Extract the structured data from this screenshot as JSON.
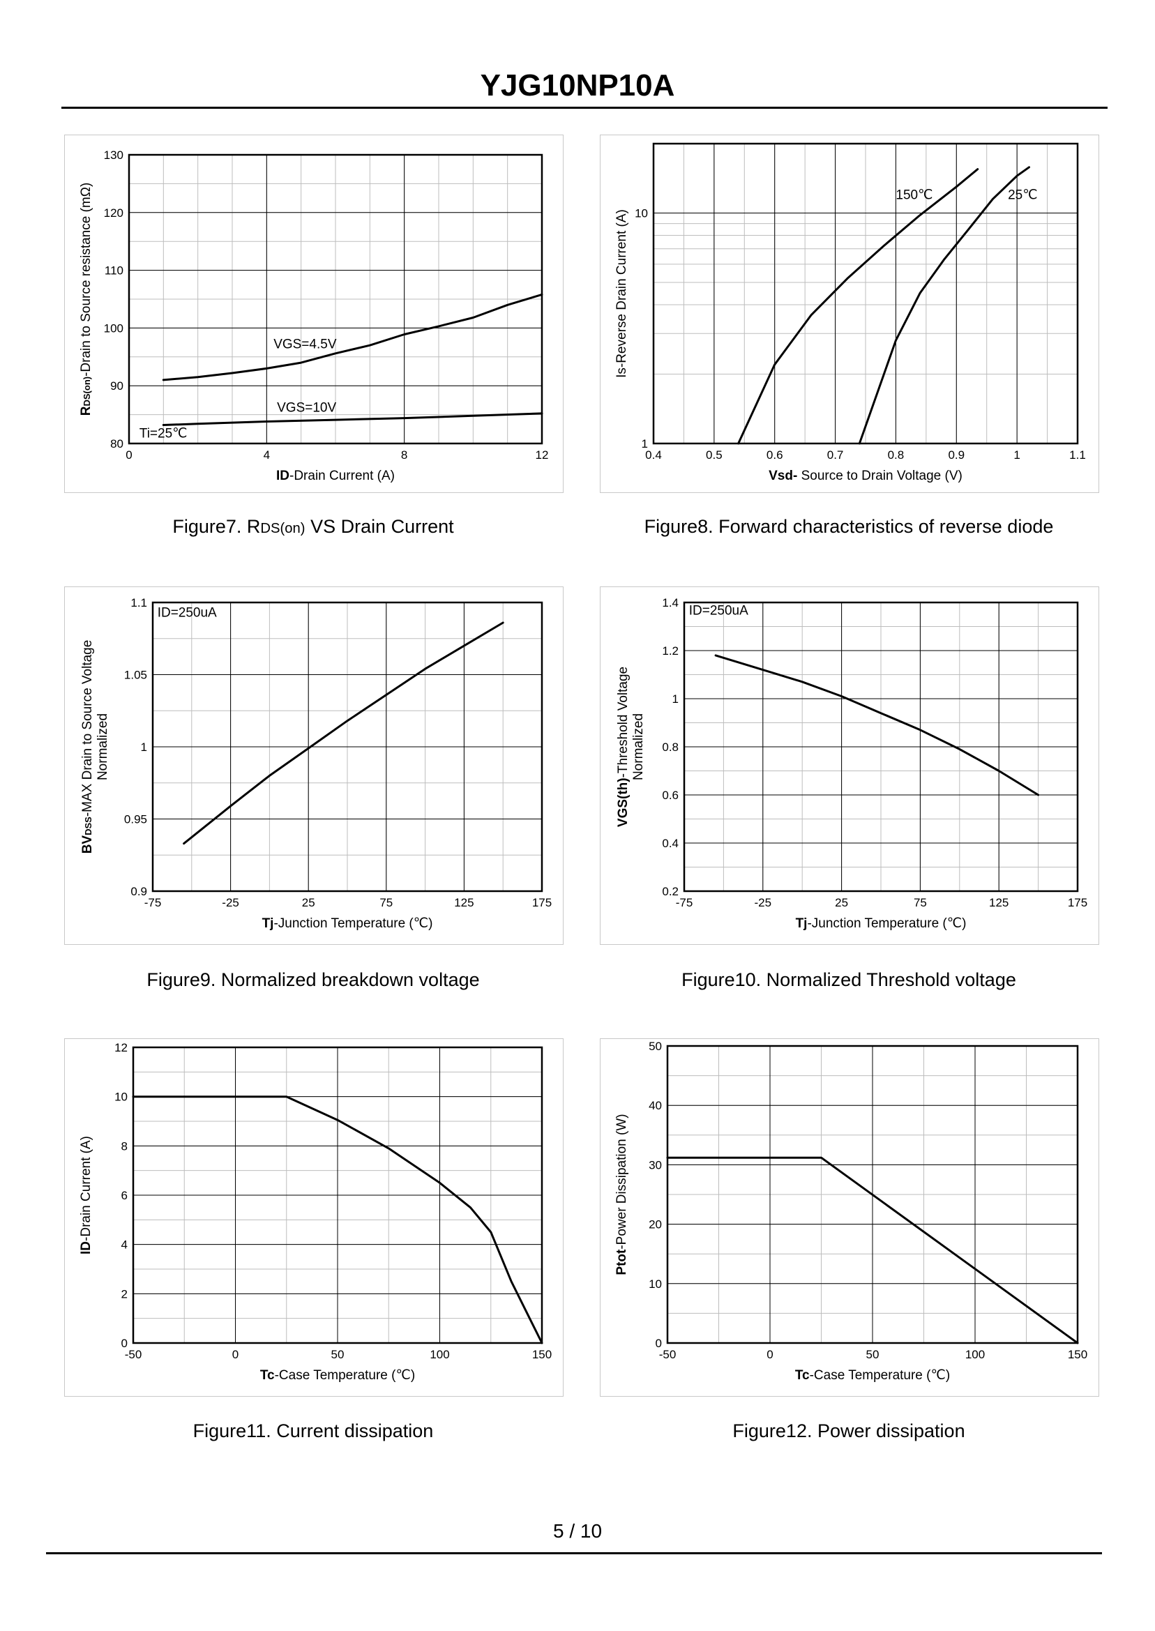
{
  "header": {
    "title": "YJG10NP10A"
  },
  "footer": {
    "page": "5 / 10"
  },
  "colors": {
    "line": "#000000",
    "grid": "#000000",
    "minor_grid": "#bdbdbd",
    "panel_border": "#c8c8c8"
  },
  "chart_data": [
    {
      "id": "fig7",
      "type": "line",
      "caption_main": "Figure7. R",
      "caption_sub": "DS(on)",
      "caption_rest": " VS Drain Current",
      "ylabel_bold": "R",
      "ylabel_sub": "DS(on)",
      "ylabel_rest": "-Drain to Source resistance (mΩ)",
      "xlabel_bold": "ID",
      "xlabel_rest": "-Drain Current  (A)",
      "x_range": [
        0,
        12
      ],
      "y_range": [
        80,
        130
      ],
      "x_ticks": [
        "0",
        "4",
        "8",
        "12"
      ],
      "x_tick_values": [
        0,
        4,
        8,
        12
      ],
      "y_ticks": [
        "80",
        "90",
        "100",
        "110",
        "120",
        "130"
      ],
      "y_tick_values": [
        80,
        90,
        100,
        110,
        120,
        130
      ],
      "x_minor_step": 1,
      "y_minor_step": 5,
      "series": [
        {
          "name": "VGS=4.5V",
          "x": [
            1,
            2,
            3,
            4,
            5,
            6,
            7,
            8,
            9,
            10,
            11,
            12
          ],
          "y": [
            91,
            91.5,
            92.2,
            93,
            94,
            95.6,
            97,
            98.9,
            100.3,
            101.8,
            104,
            105.8
          ]
        },
        {
          "name": "VGS=10V",
          "x": [
            1,
            2,
            4,
            6,
            8,
            10,
            12
          ],
          "y": [
            83.2,
            83.4,
            83.8,
            84.1,
            84.4,
            84.8,
            85.2
          ]
        }
      ],
      "annotations": [
        {
          "text": "VGS=4.5V",
          "x": 4.2,
          "y": 96.5
        },
        {
          "text": "VGS=10V",
          "x": 4.3,
          "y": 85.5
        },
        {
          "text": "Ti=25℃",
          "x": 0.3,
          "y": 81
        }
      ]
    },
    {
      "id": "fig8",
      "type": "line",
      "yscale": "log",
      "caption_main": "Figure8. Forward characteristics of reverse diode",
      "ylabel_bold": "",
      "ylabel_rest": "Is-Reverse  Drain Current (A)",
      "xlabel_bold": "Vsd-",
      "xlabel_rest": " Source to Drain Voltage (V)",
      "x_range": [
        0.4,
        1.1
      ],
      "y_range": [
        1,
        20
      ],
      "x_ticks": [
        "0.4",
        "0.5",
        "0.6",
        "0.7",
        "0.8",
        "0.9",
        "1",
        "1.1"
      ],
      "x_tick_values": [
        0.4,
        0.5,
        0.6,
        0.7,
        0.8,
        0.9,
        1.0,
        1.1
      ],
      "y_ticks": [
        "1",
        "10"
      ],
      "y_tick_values": [
        1,
        10
      ],
      "series": [
        {
          "name": "150℃",
          "x": [
            0.54,
            0.6,
            0.66,
            0.72,
            0.78,
            0.84,
            0.9,
            0.935
          ],
          "y": [
            1,
            2.2,
            3.6,
            5.2,
            7.2,
            9.8,
            13,
            15.5
          ]
        },
        {
          "name": "25℃",
          "x": [
            0.74,
            0.8,
            0.84,
            0.88,
            0.92,
            0.96,
            1.0,
            1.02
          ],
          "y": [
            1,
            2.8,
            4.5,
            6.3,
            8.5,
            11.5,
            14.5,
            15.8
          ]
        }
      ],
      "annotations": [
        {
          "text": "150℃",
          "x": 0.8,
          "y": 11.5
        },
        {
          "text": "25℃",
          "x": 0.985,
          "y": 11.5
        }
      ]
    },
    {
      "id": "fig9",
      "type": "line",
      "caption_main": "Figure9. Normalized breakdown voltage",
      "ylabel_bold": "BV",
      "ylabel_sub": "DSS",
      "ylabel_rest": "-MAX Drain to Source Voltage",
      "ylabel_line2": "Normalized",
      "xlabel_bold": "Tj",
      "xlabel_rest": "-Junction  Temperature  (℃)",
      "x_range": [
        -75,
        175
      ],
      "y_range": [
        0.9,
        1.1
      ],
      "x_ticks": [
        "-75",
        "-25",
        "25",
        "75",
        "125",
        "175"
      ],
      "x_tick_values": [
        -75,
        -25,
        25,
        75,
        125,
        175
      ],
      "y_ticks": [
        "0.9",
        "0.95",
        "1",
        "1.05",
        "1.1"
      ],
      "y_tick_values": [
        0.9,
        0.95,
        1.0,
        1.05,
        1.1
      ],
      "x_minor_step": 25,
      "y_minor_step": 0.025,
      "series": [
        {
          "name": "BVDSS",
          "x": [
            -55,
            -25,
            0,
            25,
            50,
            75,
            100,
            125,
            150
          ],
          "y": [
            0.933,
            0.959,
            0.98,
            0.999,
            1.018,
            1.036,
            1.054,
            1.07,
            1.086
          ]
        }
      ],
      "annotations": [
        {
          "text": "ID=250uA",
          "x": -72,
          "y": 1.09
        }
      ]
    },
    {
      "id": "fig10",
      "type": "line",
      "caption_main": "Figure10. Normalized Threshold voltage",
      "ylabel_bold": "VGS(th)",
      "ylabel_rest": "-Threshold  Voltage",
      "ylabel_line2": "Normalized",
      "xlabel_bold": "Tj",
      "xlabel_rest": "-Junction  Temperature  (℃)",
      "x_range": [
        -75,
        175
      ],
      "y_range": [
        0.2,
        1.4
      ],
      "x_ticks": [
        "-75",
        "-25",
        "25",
        "75",
        "125",
        "175"
      ],
      "x_tick_values": [
        -75,
        -25,
        25,
        75,
        125,
        175
      ],
      "y_ticks": [
        "0.2",
        "0.4",
        "0.6",
        "0.8",
        "1",
        "1.2",
        "1.4"
      ],
      "y_tick_values": [
        0.2,
        0.4,
        0.6,
        0.8,
        1.0,
        1.2,
        1.4
      ],
      "x_minor_step": 25,
      "y_minor_step": 0.1,
      "series": [
        {
          "name": "VGS(th)",
          "x": [
            -55,
            -25,
            0,
            25,
            50,
            75,
            100,
            125,
            150
          ],
          "y": [
            1.18,
            1.12,
            1.07,
            1.01,
            0.94,
            0.87,
            0.79,
            0.7,
            0.6
          ]
        }
      ],
      "annotations": [
        {
          "text": "ID=250uA",
          "x": -72,
          "y": 1.35
        }
      ]
    },
    {
      "id": "fig11",
      "type": "line",
      "caption_main": "Figure11. Current dissipation",
      "ylabel_bold": "ID",
      "ylabel_rest": "-Drain Current (A)",
      "xlabel_bold": "Tc",
      "xlabel_rest": "-Case Temperature (℃)",
      "x_range": [
        -50,
        150
      ],
      "y_range": [
        0,
        12
      ],
      "x_ticks": [
        "-50",
        "0",
        "50",
        "100",
        "150"
      ],
      "x_tick_values": [
        -50,
        0,
        50,
        100,
        150
      ],
      "y_ticks": [
        "0",
        "2",
        "4",
        "6",
        "8",
        "10",
        "12"
      ],
      "y_tick_values": [
        0,
        2,
        4,
        6,
        8,
        10,
        12
      ],
      "x_minor_step": 25,
      "y_minor_step": 1,
      "series": [
        {
          "name": "ID",
          "x": [
            -50,
            25,
            50,
            75,
            100,
            115,
            125,
            135,
            150
          ],
          "y": [
            10,
            10,
            9.05,
            7.9,
            6.5,
            5.5,
            4.5,
            2.5,
            0
          ]
        }
      ],
      "annotations": []
    },
    {
      "id": "fig12",
      "type": "line",
      "caption_main": "Figure12. Power dissipation",
      "ylabel_bold": "Ptot",
      "ylabel_rest": "-Power Dissipation  (W)",
      "xlabel_bold": "Tc",
      "xlabel_rest": "-Case Temperature (℃)",
      "x_range": [
        -50,
        150
      ],
      "y_range": [
        0,
        50
      ],
      "x_ticks": [
        "-50",
        "0",
        "50",
        "100",
        "150"
      ],
      "x_tick_values": [
        -50,
        0,
        50,
        100,
        150
      ],
      "y_ticks": [
        "0",
        "10",
        "20",
        "30",
        "40",
        "50"
      ],
      "y_tick_values": [
        0,
        10,
        20,
        30,
        40,
        50
      ],
      "x_minor_step": 25,
      "y_minor_step": 5,
      "series": [
        {
          "name": "Ptot",
          "x": [
            -50,
            25,
            150
          ],
          "y": [
            31.2,
            31.2,
            0
          ]
        }
      ],
      "annotations": []
    }
  ]
}
